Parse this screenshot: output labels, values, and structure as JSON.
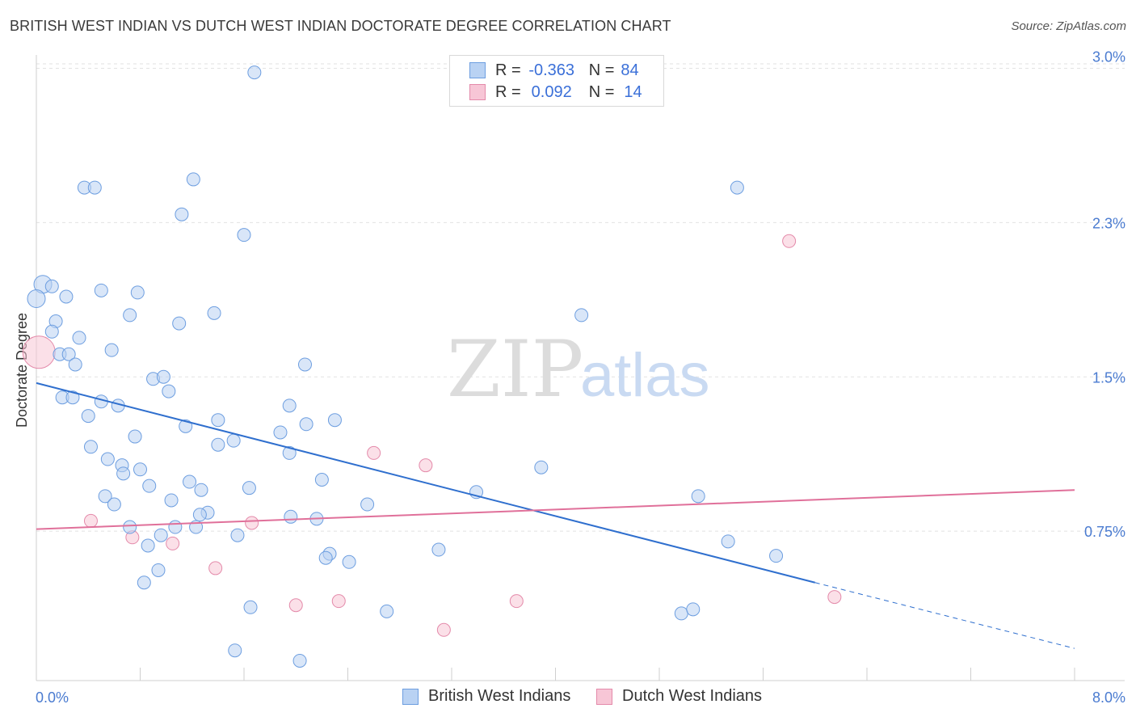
{
  "title": "BRITISH WEST INDIAN VS DUTCH WEST INDIAN DOCTORATE DEGREE CORRELATION CHART",
  "source": "Source: ZipAtlas.com",
  "watermark": {
    "zip": "ZIP",
    "atlas": "atlas"
  },
  "legend": {
    "series1": {
      "r_label": "R =",
      "r_value": "-0.363",
      "n_label": "N =",
      "n_value": "84"
    },
    "series2": {
      "r_label": "R =",
      "r_value": "0.092",
      "n_label": "N =",
      "n_value": "14"
    }
  },
  "colors": {
    "blue_fill": "#b9d2f3",
    "blue_stroke": "#6d9ee0",
    "blue_line": "#2f6fce",
    "pink_fill": "#f7c6d6",
    "pink_stroke": "#e48aaa",
    "pink_line": "#e0709a",
    "grid": "#e2e2e2",
    "axis_text": "#4a7bd0"
  },
  "chart_data": {
    "type": "scatter",
    "xlabel": "",
    "ylabel": "Doctorate Degree",
    "xlim": [
      0.0,
      8.0
    ],
    "ylim": [
      0.0,
      3.1
    ],
    "x_tick_labels": [
      "0.0%",
      "8.0%"
    ],
    "y_ticks": [
      {
        "value": 0.75,
        "label": "0.75%"
      },
      {
        "value": 1.5,
        "label": "1.5%"
      },
      {
        "value": 2.25,
        "label": "2.3%"
      },
      {
        "value": 3.0,
        "label": "3.0%"
      }
    ],
    "legend_position": "bottom",
    "series": [
      {
        "name": "British West Indians",
        "r": -0.363,
        "n": 84,
        "trend": {
          "x0": 0.0,
          "y0": 1.47,
          "x1": 6.0,
          "y1": 0.5,
          "dash_to_x": 8.0,
          "dash_to_y": 0.18
        },
        "points": [
          [
            1.68,
            2.98
          ],
          [
            0.37,
            2.42
          ],
          [
            0.45,
            2.42
          ],
          [
            1.21,
            2.46
          ],
          [
            1.12,
            2.29
          ],
          [
            1.6,
            2.19
          ],
          [
            0.05,
            1.95
          ],
          [
            0.12,
            1.94
          ],
          [
            0.5,
            1.92
          ],
          [
            0.78,
            1.91
          ],
          [
            0.0,
            1.88
          ],
          [
            0.23,
            1.89
          ],
          [
            1.37,
            1.81
          ],
          [
            0.15,
            1.77
          ],
          [
            1.1,
            1.76
          ],
          [
            0.12,
            1.72
          ],
          [
            0.33,
            1.69
          ],
          [
            0.58,
            1.63
          ],
          [
            0.18,
            1.61
          ],
          [
            0.25,
            1.61
          ],
          [
            0.3,
            1.56
          ],
          [
            2.07,
            1.56
          ],
          [
            0.9,
            1.49
          ],
          [
            0.98,
            1.5
          ],
          [
            1.02,
            1.43
          ],
          [
            0.2,
            1.4
          ],
          [
            0.28,
            1.4
          ],
          [
            0.5,
            1.38
          ],
          [
            0.63,
            1.36
          ],
          [
            1.95,
            1.36
          ],
          [
            0.4,
            1.31
          ],
          [
            1.4,
            1.29
          ],
          [
            2.3,
            1.29
          ],
          [
            1.15,
            1.26
          ],
          [
            2.08,
            1.27
          ],
          [
            1.88,
            1.23
          ],
          [
            0.76,
            1.21
          ],
          [
            1.52,
            1.19
          ],
          [
            1.4,
            1.17
          ],
          [
            0.42,
            1.16
          ],
          [
            1.95,
            1.13
          ],
          [
            0.55,
            1.1
          ],
          [
            0.66,
            1.07
          ],
          [
            0.8,
            1.05
          ],
          [
            3.89,
            1.06
          ],
          [
            0.67,
            1.03
          ],
          [
            1.18,
            0.99
          ],
          [
            2.2,
            1.0
          ],
          [
            0.87,
            0.97
          ],
          [
            1.27,
            0.95
          ],
          [
            1.64,
            0.96
          ],
          [
            3.39,
            0.94
          ],
          [
            0.53,
            0.92
          ],
          [
            1.04,
            0.9
          ],
          [
            0.6,
            0.88
          ],
          [
            2.55,
            0.88
          ],
          [
            5.1,
            0.92
          ],
          [
            1.32,
            0.84
          ],
          [
            1.26,
            0.83
          ],
          [
            1.96,
            0.82
          ],
          [
            2.16,
            0.81
          ],
          [
            0.72,
            0.77
          ],
          [
            1.07,
            0.77
          ],
          [
            1.23,
            0.77
          ],
          [
            0.96,
            0.73
          ],
          [
            1.55,
            0.73
          ],
          [
            5.33,
            0.7
          ],
          [
            0.86,
            0.68
          ],
          [
            2.26,
            0.64
          ],
          [
            2.23,
            0.62
          ],
          [
            2.41,
            0.6
          ],
          [
            3.1,
            0.66
          ],
          [
            5.7,
            0.63
          ],
          [
            0.94,
            0.56
          ],
          [
            0.83,
            0.5
          ],
          [
            1.65,
            0.38
          ],
          [
            2.7,
            0.36
          ],
          [
            4.97,
            0.35
          ],
          [
            5.06,
            0.37
          ],
          [
            1.53,
            0.17
          ],
          [
            2.03,
            0.12
          ],
          [
            5.4,
            2.42
          ],
          [
            0.72,
            1.8
          ],
          [
            4.2,
            1.8
          ]
        ]
      },
      {
        "name": "Dutch West Indians",
        "r": 0.092,
        "n": 14,
        "trend": {
          "x0": 0.0,
          "y0": 0.76,
          "x1": 8.0,
          "y1": 0.95
        },
        "points": [
          [
            0.02,
            1.62
          ],
          [
            5.8,
            2.16
          ],
          [
            2.6,
            1.13
          ],
          [
            3.0,
            1.07
          ],
          [
            0.42,
            0.8
          ],
          [
            1.66,
            0.79
          ],
          [
            0.74,
            0.72
          ],
          [
            1.05,
            0.69
          ],
          [
            1.38,
            0.57
          ],
          [
            2.0,
            0.39
          ],
          [
            2.33,
            0.41
          ],
          [
            3.7,
            0.41
          ],
          [
            6.15,
            0.43
          ],
          [
            3.14,
            0.27
          ]
        ]
      }
    ]
  }
}
